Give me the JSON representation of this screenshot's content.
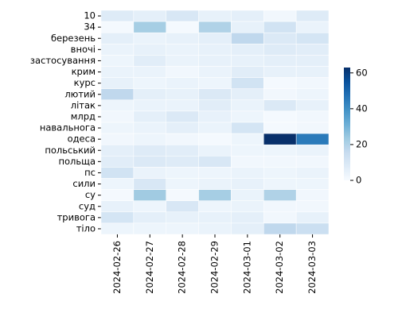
{
  "chart_data": {
    "type": "heatmap",
    "x": [
      "2024-02-26",
      "2024-02-27",
      "2024-02-28",
      "2024-02-29",
      "2024-03-01",
      "2024-03-02",
      "2024-03-03"
    ],
    "categories": [
      "10",
      "34",
      "березень",
      "вночі",
      "застосування",
      "крим",
      "курс",
      "лютий",
      "літак",
      "млрд",
      "навальнога",
      "одеса",
      "польський",
      "польща",
      "пс",
      "сили",
      "су",
      "суд",
      "тривога",
      "тіло"
    ],
    "values": [
      [
        8,
        6,
        10,
        5,
        6,
        2,
        8
      ],
      [
        1,
        22,
        1,
        20,
        5,
        12,
        4
      ],
      [
        6,
        4,
        5,
        6,
        17,
        9,
        11
      ],
      [
        4,
        5,
        4,
        5,
        6,
        8,
        7
      ],
      [
        3,
        7,
        4,
        5,
        5,
        6,
        6
      ],
      [
        4,
        4,
        2,
        4,
        7,
        5,
        5
      ],
      [
        5,
        3,
        4,
        3,
        12,
        1,
        2
      ],
      [
        17,
        6,
        5,
        9,
        6,
        2,
        3
      ],
      [
        3,
        4,
        4,
        7,
        4,
        9,
        5
      ],
      [
        2,
        6,
        9,
        5,
        3,
        1,
        2
      ],
      [
        3,
        4,
        6,
        4,
        11,
        1,
        2
      ],
      [
        2,
        3,
        2,
        1,
        3,
        63,
        45
      ],
      [
        6,
        8,
        7,
        4,
        3,
        3,
        4
      ],
      [
        7,
        9,
        8,
        10,
        2,
        2,
        2
      ],
      [
        12,
        4,
        3,
        3,
        4,
        3,
        4
      ],
      [
        3,
        10,
        3,
        4,
        5,
        3,
        3
      ],
      [
        1,
        23,
        1,
        22,
        4,
        20,
        2
      ],
      [
        5,
        3,
        10,
        3,
        4,
        2,
        2
      ],
      [
        11,
        6,
        5,
        5,
        6,
        2,
        5
      ],
      [
        3,
        3,
        3,
        4,
        6,
        17,
        14
      ]
    ],
    "colormap": [
      "#f7fbff",
      "#deebf7",
      "#c6dbef",
      "#9ecae1",
      "#6baed6",
      "#4292c6",
      "#2171b5",
      "#08519c",
      "#08306b"
    ],
    "clim": [
      0,
      63
    ],
    "cticks": [
      0,
      20,
      40,
      60
    ]
  }
}
